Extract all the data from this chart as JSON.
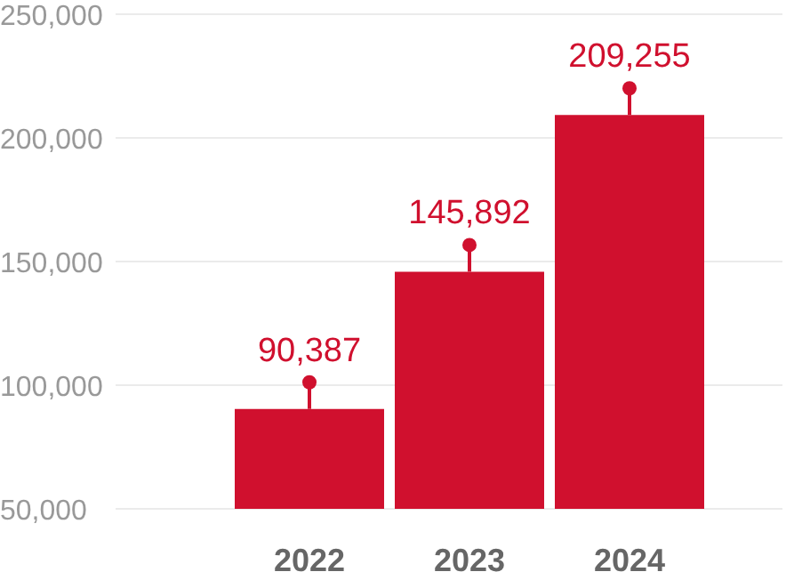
{
  "chart_data": {
    "type": "bar",
    "categories": [
      "2022",
      "2023",
      "2024"
    ],
    "values": [
      90387,
      145892,
      209255
    ],
    "color": "#d0102e",
    "ylim": [
      50000,
      250000
    ],
    "yticks": [
      {
        "value": 50000,
        "label": "50,000"
      },
      {
        "value": 100000,
        "label": "100,000"
      },
      {
        "value": 150000,
        "label": "150,000"
      },
      {
        "value": 200000,
        "label": "200,000"
      },
      {
        "value": 250000,
        "label": "250,000"
      }
    ],
    "value_labels": [
      "90,387",
      "145,892",
      "209,255"
    ],
    "grid": "y"
  }
}
